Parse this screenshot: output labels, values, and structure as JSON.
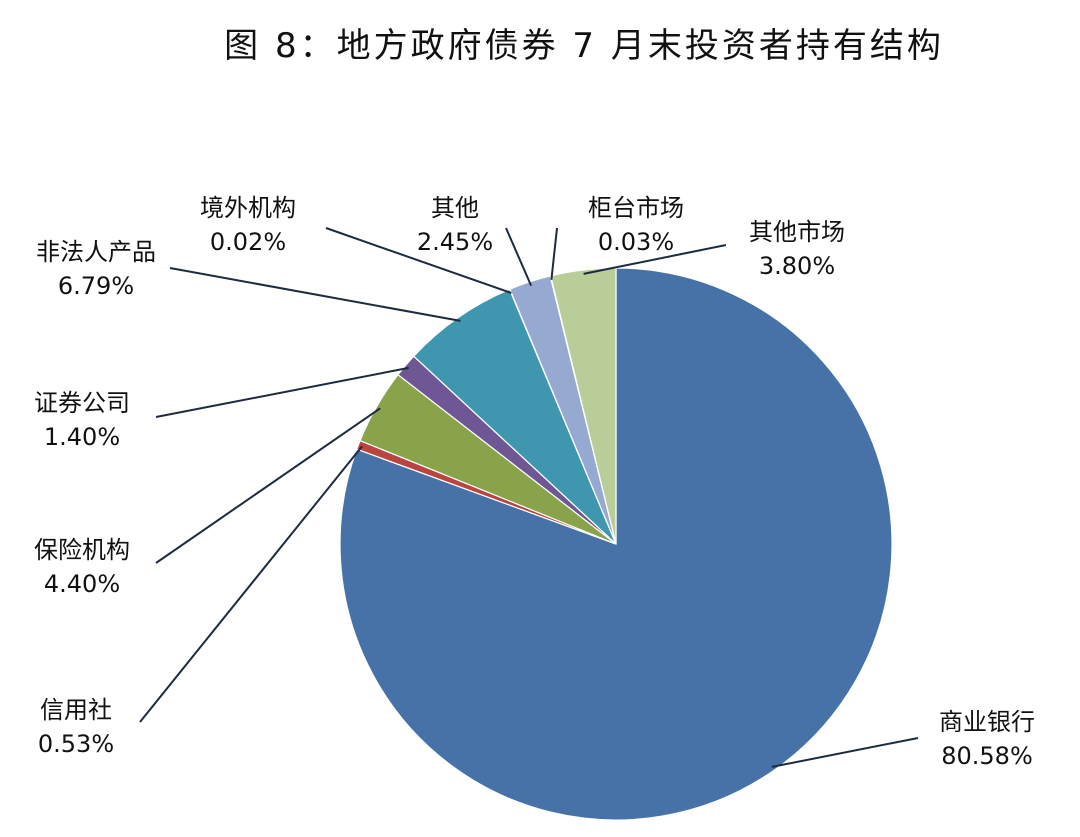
{
  "chart_data": {
    "type": "pie",
    "title": "图 8：地方政府债券 7 月末投资者持有结构",
    "slices": [
      {
        "name": "商业银行",
        "value": 80.58,
        "label": "80.58%",
        "color": "#4672A8"
      },
      {
        "name": "信用社",
        "value": 0.53,
        "label": "0.53%",
        "color": "#B94440"
      },
      {
        "name": "保险机构",
        "value": 4.4,
        "label": "4.40%",
        "color": "#88A34A"
      },
      {
        "name": "证券公司",
        "value": 1.4,
        "label": "1.40%",
        "color": "#6F5795"
      },
      {
        "name": "非法人产品",
        "value": 6.79,
        "label": "6.79%",
        "color": "#3E97AE"
      },
      {
        "name": "境外机构",
        "value": 0.02,
        "label": "0.02%",
        "color": "#E1823A"
      },
      {
        "name": "其他",
        "value": 2.45,
        "label": "2.45%",
        "color": "#95A9D1"
      },
      {
        "name": "柜台市场",
        "value": 0.03,
        "label": "0.03%",
        "color": "#D7999A"
      },
      {
        "name": "其他市场",
        "value": 3.8,
        "label": "3.80%",
        "color": "#B8CD97"
      }
    ],
    "legend": "none"
  }
}
